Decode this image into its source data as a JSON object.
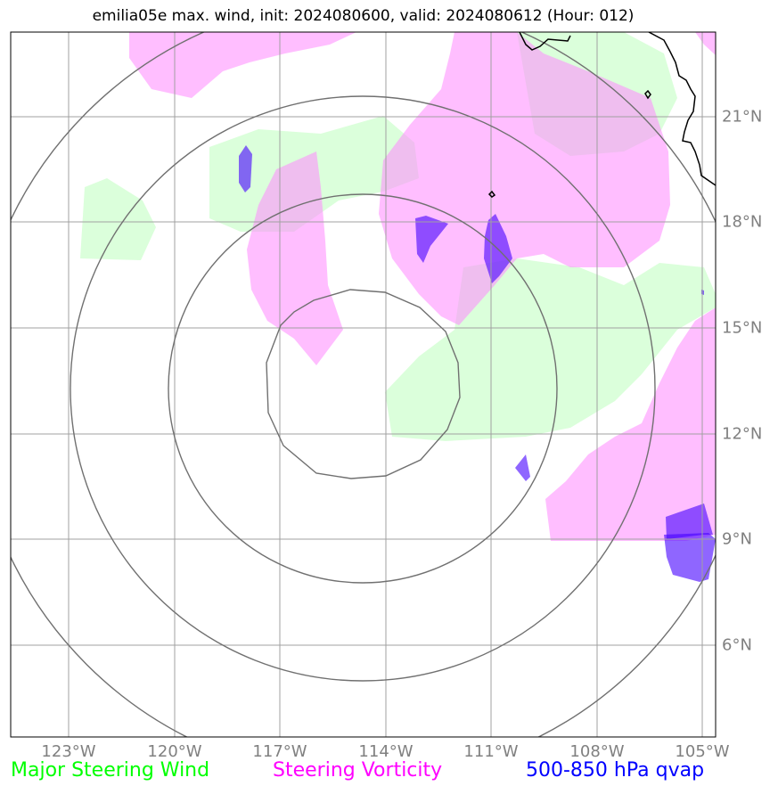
{
  "title": "emilia05e max. wind, init: 2024080600, valid: 2024080612 (Hour: 012)",
  "longitude_labels": [
    "123°W",
    "120°W",
    "117°W",
    "114°W",
    "111°W",
    "108°W",
    "105°W"
  ],
  "latitude_labels": [
    "21°N",
    "18°N",
    "15°N",
    "12°N",
    "9°N",
    "6°N"
  ],
  "legend": {
    "wind": "Major Steering Wind",
    "vorticity": "Steering Vorticity",
    "qvap": "500-850 hPa qvap"
  },
  "colors": {
    "wind_fill": "#ccffcc",
    "vorticity_fill": "#ff88ff",
    "qvap_fill": "#4400ff",
    "wind_text": "#00ff00",
    "vorticity_text": "#ff00ff",
    "qvap_text": "#0000ff",
    "grid": "#a0a0a0",
    "rings": "#707070",
    "coast": "#000000"
  }
}
